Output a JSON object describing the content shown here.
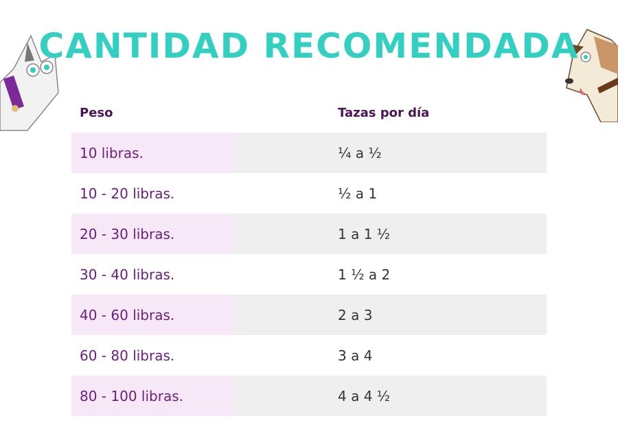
{
  "header": {
    "title": "CANTIDAD RECOMENDADA"
  },
  "table": {
    "columns": [
      "Peso",
      "Tazas por día"
    ],
    "rows": [
      [
        "10 libras.",
        "¼ a ½"
      ],
      [
        "10 - 20 libras.",
        "½ a 1"
      ],
      [
        "20 - 30 libras.",
        "1 a 1 ½"
      ],
      [
        "30 - 40 libras.",
        "1 ½ a 2"
      ],
      [
        "40 - 60 libras.",
        "2 a 3"
      ],
      [
        "60 - 80 libras.",
        "3 a 4"
      ],
      [
        "80 - 100 libras.",
        "4 a 4 ½"
      ]
    ]
  }
}
